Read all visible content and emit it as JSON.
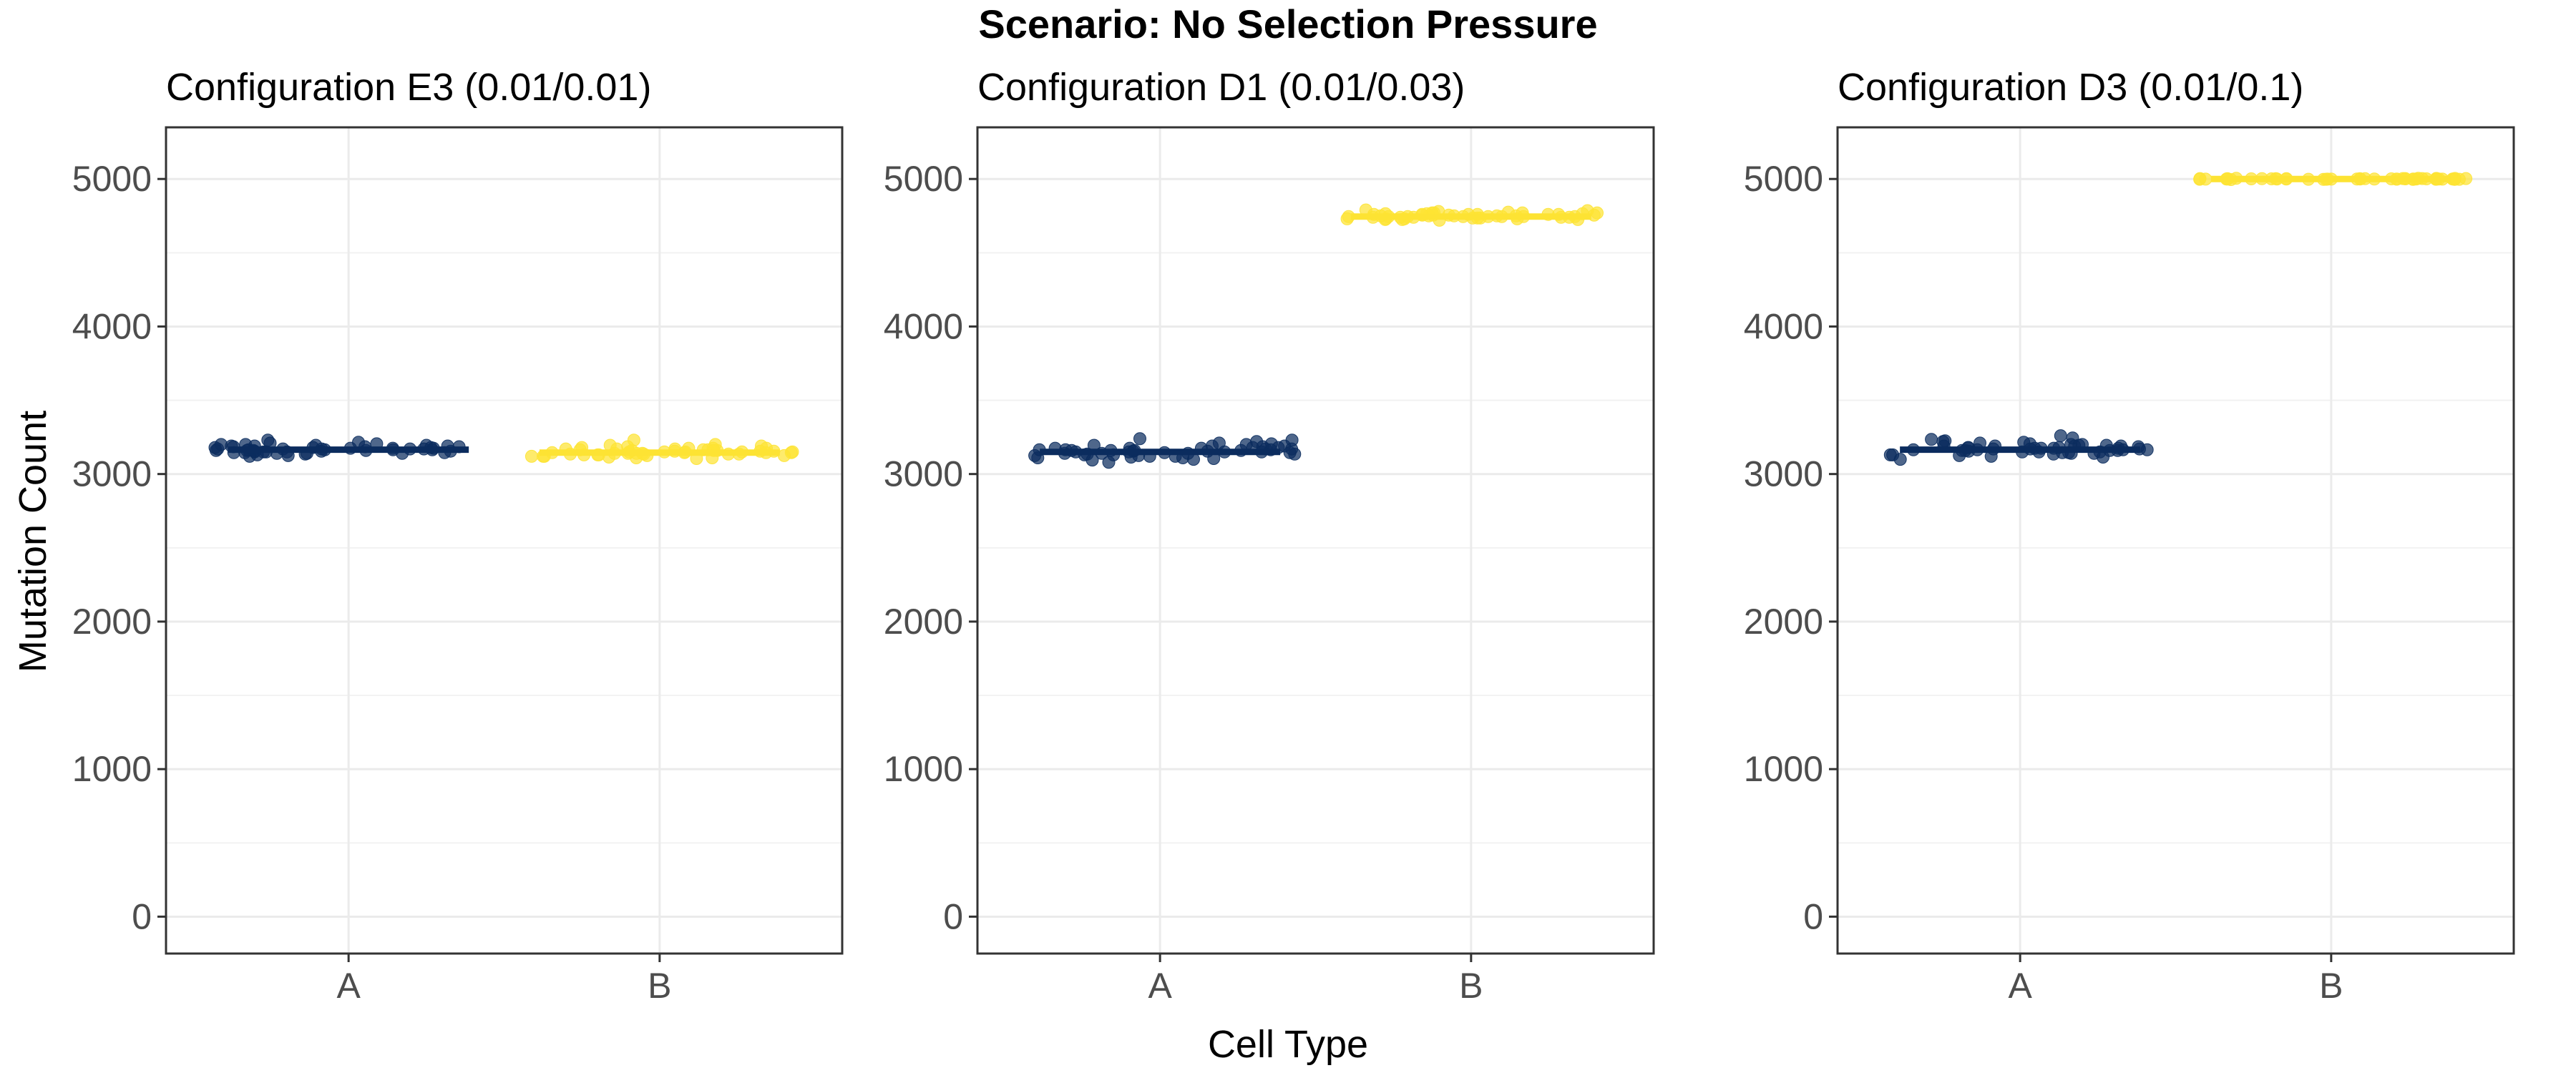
{
  "chart_data": {
    "type": "scatter",
    "title": "Scenario: No Selection Pressure",
    "xlabel": "Cell Type",
    "ylabel": "Mutation Count",
    "ylim": [
      -250,
      5350
    ],
    "yticks": [
      0,
      1000,
      2000,
      3000,
      4000,
      5000
    ],
    "categories": [
      "A",
      "B"
    ],
    "grid": true,
    "legend": "none",
    "colors": {
      "A": "#0b2c5e",
      "B": "#fde333"
    },
    "panels": [
      {
        "title": "Configuration E3 (0.01/0.01)",
        "series": [
          {
            "category": "A",
            "median": 3165,
            "values": [
              3150,
              3185,
              3140,
              3170,
              3200,
              3160,
              3155,
              3175,
              3145,
              3190,
              3165,
              3130,
              3180,
              3210,
              3150,
              3170,
              3160,
              3195,
              3140,
              3175,
              3185,
              3120,
              3165,
              3230,
              3155,
              3200,
              3145,
              3170,
              3180,
              3160,
              3135,
              3190,
              3175,
              3150,
              3215,
              3165,
              3140,
              3185,
              3160,
              3170,
              3125,
              3195,
              3155,
              3180,
              3165,
              3145,
              3205,
              3170,
              3150,
              3190
            ]
          },
          {
            "category": "B",
            "median": 3145,
            "values": [
              3130,
              3160,
              3120,
              3150,
              3175,
              3140,
              3135,
              3155,
              3110,
              3170,
              3145,
              3125,
              3165,
              3190,
              3135,
              3150,
              3105,
              3175,
              3140,
              3155,
              3160,
              3120,
              3145,
              3200,
              3130,
              3180,
              3115,
              3150,
              3165,
              3140,
              3125,
              3170,
              3155,
              3135,
              3195,
              3145,
              3110,
              3165,
              3140,
              3150,
              3230,
              3175,
              3135,
              3160,
              3145,
              3120,
              3185,
              3150,
              3130,
              3170
            ]
          }
        ]
      },
      {
        "title": "Configuration D1 (0.01/0.03)",
        "series": [
          {
            "category": "A",
            "median": 3150,
            "values": [
              3140,
              3170,
              3120,
              3160,
              3190,
              3130,
              3145,
              3165,
              3100,
              3180,
              3150,
              3115,
              3175,
              3210,
              3135,
              3160,
              3080,
              3195,
              3140,
              3165,
              3170,
              3110,
              3150,
              3240,
              3125,
              3200,
              3105,
              3160,
              3175,
              3140,
              3120,
              3185,
              3155,
              3135,
              3220,
              3150,
              3095,
              3175,
              3145,
              3160,
              3230,
              3190,
              3130,
              3165,
              3150,
              3110,
              3205,
              3155,
              3125,
              3180
            ]
          },
          {
            "category": "B",
            "median": 4745,
            "values": [
              4740,
              4760,
              4730,
              4750,
              4770,
              4745,
              4735,
              4755,
              4725,
              4765,
              4745,
              4730,
              4760,
              4780,
              4740,
              4750,
              4720,
              4770,
              4745,
              4755,
              4760,
              4735,
              4745,
              4785,
              4740,
              4765,
              4725,
              4750,
              4760,
              4745,
              4730,
              4770,
              4755,
              4740,
              4775,
              4745,
              4725,
              4760,
              4745,
              4750,
              4790,
              4765,
              4740,
              4755,
              4745,
              4730,
              4770,
              4750,
              4735,
              4760
            ]
          }
        ]
      },
      {
        "title": "Configuration D3 (0.01/0.1)",
        "series": [
          {
            "category": "A",
            "median": 3165,
            "values": [
              3160,
              3190,
              3140,
              3175,
              3210,
              3150,
              3165,
              3180,
              3120,
              3195,
              3170,
              3135,
              3185,
              3225,
              3155,
              3175,
              3100,
              3200,
              3160,
              3180,
              3190,
              3130,
              3165,
              3260,
              3145,
              3215,
              3125,
              3175,
              3190,
              3160,
              3140,
              3200,
              3170,
              3150,
              3235,
              3165,
              3115,
              3190,
              3160,
              3175,
              3245,
              3205,
              3150,
              3180,
              3165,
              3130,
              3220,
              3170,
              3145,
              3195
            ]
          },
          {
            "category": "B",
            "median": 5000,
            "values": [
              5000,
              5002,
              4998,
              5000,
              5003,
              4999,
              5000,
              5001,
              4997,
              5002,
              5000,
              4998,
              5001,
              5004,
              4999,
              5000,
              4996,
              5003,
              5000,
              5001,
              5002,
              4998,
              5000,
              5005,
              4999,
              5002,
              4997,
              5000,
              5001,
              5000,
              4998,
              5003,
              5001,
              4999,
              5004,
              5000,
              4997,
              5002,
              5000,
              5001,
              5005,
              5003,
              4999,
              5001,
              5000,
              4998,
              5003,
              5000,
              4999,
              5002
            ]
          }
        ]
      }
    ]
  }
}
